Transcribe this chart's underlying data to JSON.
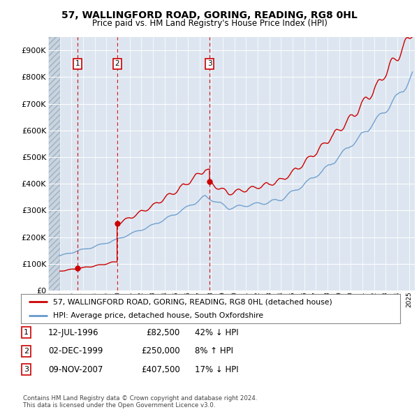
{
  "title": "57, WALLINGFORD ROAD, GORING, READING, RG8 0HL",
  "subtitle": "Price paid vs. HM Land Registry's House Price Index (HPI)",
  "transactions": [
    {
      "num": 1,
      "date": "12-JUL-1996",
      "price": 82500,
      "hpi_rel": "42% ↓ HPI",
      "x_year": 1996.53
    },
    {
      "num": 2,
      "date": "02-DEC-1999",
      "price": 250000,
      "hpi_rel": "8% ↑ HPI",
      "x_year": 1999.92
    },
    {
      "num": 3,
      "date": "09-NOV-2007",
      "price": 407500,
      "hpi_rel": "17% ↓ HPI",
      "x_year": 2007.86
    }
  ],
  "legend_line1": "57, WALLINGFORD ROAD, GORING, READING, RG8 0HL (detached house)",
  "legend_line2": "HPI: Average price, detached house, South Oxfordshire",
  "copyright": "Contains HM Land Registry data © Crown copyright and database right 2024.\nThis data is licensed under the Open Government Licence v3.0.",
  "ylim": [
    0,
    950000
  ],
  "xlim_data": [
    1994.0,
    2025.5
  ],
  "hatch_end": 1995.0,
  "property_color": "#cc0000",
  "hpi_color": "#6699cc",
  "bg_plot": "#dde6f0",
  "grid_color": "#ffffff",
  "vline_color": "#cc0000",
  "box_color": "#cc0000",
  "yticks": [
    0,
    100000,
    200000,
    300000,
    400000,
    500000,
    600000,
    700000,
    800000,
    900000
  ]
}
